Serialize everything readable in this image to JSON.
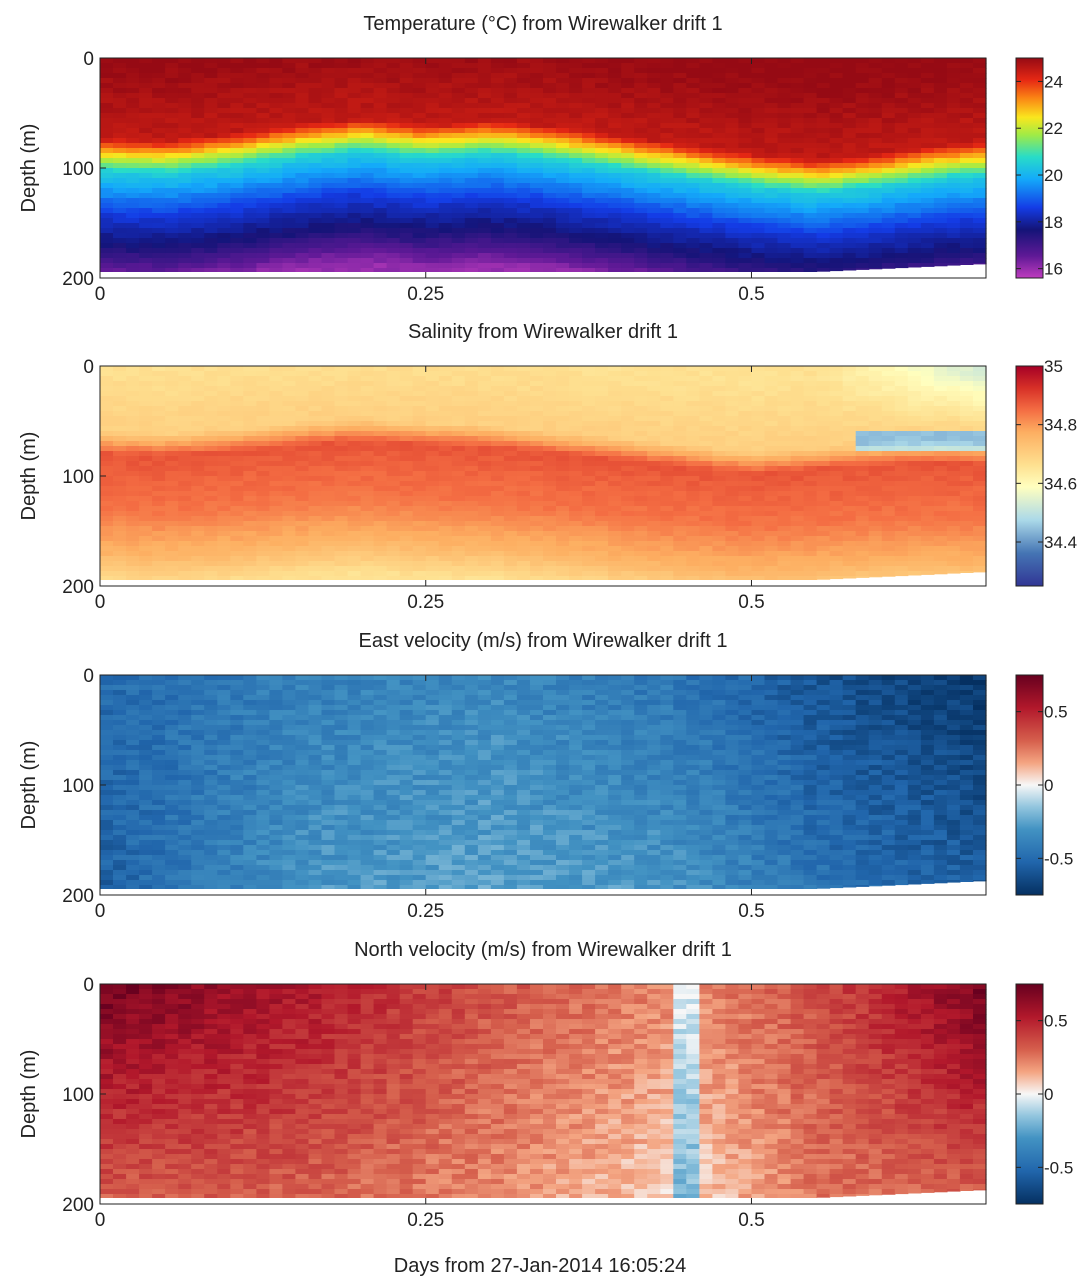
{
  "figure": {
    "xlabel": "Days from 27-Jan-2014 16:05:24"
  },
  "chart_data": [
    {
      "type": "heatmap",
      "variable": "temperature",
      "title": "Temperature (°C) from Wirewalker drift 1",
      "ylabel": "Depth (m)",
      "xlabel": "",
      "xlim": [
        0,
        0.68
      ],
      "ylim": [
        200,
        0
      ],
      "xticks": [
        "0",
        "0.25",
        "0.5"
      ],
      "yticks": [
        "0",
        "100",
        "200"
      ],
      "colormap": "jet",
      "clim": [
        15.6,
        25
      ],
      "colorbar_ticks": [
        "24",
        "22",
        "20",
        "18",
        "16"
      ],
      "colorbar_tick_values": [
        24,
        22,
        20,
        18,
        16
      ],
      "thermocline_depth_m": [
        [
          0,
          78
        ],
        [
          0.05,
          80
        ],
        [
          0.1,
          74
        ],
        [
          0.15,
          66
        ],
        [
          0.2,
          60
        ],
        [
          0.25,
          66
        ],
        [
          0.3,
          62
        ],
        [
          0.35,
          68
        ],
        [
          0.4,
          76
        ],
        [
          0.45,
          84
        ],
        [
          0.5,
          92
        ],
        [
          0.55,
          98
        ],
        [
          0.6,
          92
        ],
        [
          0.65,
          84
        ],
        [
          0.68,
          82
        ]
      ],
      "profile": [
        [
          0,
          25
        ],
        [
          70,
          24.5
        ],
        [
          100,
          20.5
        ],
        [
          140,
          18.5
        ],
        [
          170,
          17.5
        ],
        [
          200,
          16
        ]
      ]
    },
    {
      "type": "heatmap",
      "variable": "salinity",
      "title": "Salinity from Wirewalker drift 1",
      "ylabel": "Depth (m)",
      "xlabel": "",
      "xlim": [
        0,
        0.68
      ],
      "ylim": [
        200,
        0
      ],
      "xticks": [
        "0",
        "0.25",
        "0.5"
      ],
      "yticks": [
        "0",
        "100",
        "200"
      ],
      "colormap": "RdYlBu_r",
      "clim": [
        34.25,
        35
      ],
      "colorbar_ticks": [
        "35",
        "34.8",
        "34.6",
        "34.4"
      ],
      "colorbar_tick_values": [
        35,
        34.8,
        34.6,
        34.4
      ],
      "halocline_depth_m": [
        [
          0,
          70
        ],
        [
          0.05,
          72
        ],
        [
          0.1,
          68
        ],
        [
          0.15,
          62
        ],
        [
          0.2,
          58
        ],
        [
          0.25,
          62
        ],
        [
          0.3,
          64
        ],
        [
          0.35,
          70
        ],
        [
          0.4,
          76
        ],
        [
          0.45,
          82
        ],
        [
          0.5,
          88
        ],
        [
          0.55,
          84
        ],
        [
          0.6,
          80
        ],
        [
          0.65,
          78
        ],
        [
          0.68,
          80
        ]
      ],
      "profile": [
        [
          0,
          34.66
        ],
        [
          60,
          34.7
        ],
        [
          80,
          34.88
        ],
        [
          130,
          34.84
        ],
        [
          170,
          34.76
        ],
        [
          200,
          34.66
        ]
      ]
    },
    {
      "type": "heatmap",
      "variable": "east_velocity",
      "title": "East velocity (m/s) from Wirewalker drift 1",
      "ylabel": "Depth (m)",
      "xlabel": "",
      "xlim": [
        0,
        0.68
      ],
      "ylim": [
        200,
        0
      ],
      "xticks": [
        "0",
        "0.25",
        "0.5"
      ],
      "yticks": [
        "0",
        "100",
        "200"
      ],
      "colormap": "RdBu_r",
      "clim": [
        -0.75,
        0.75
      ],
      "colorbar_ticks": [
        "0.5",
        "0",
        "-0.5"
      ],
      "colorbar_tick_values": [
        0.5,
        0,
        -0.5
      ],
      "surface_value": [
        [
          0,
          -0.5
        ],
        [
          0.15,
          -0.4
        ],
        [
          0.3,
          -0.35
        ],
        [
          0.45,
          -0.45
        ],
        [
          0.55,
          -0.6
        ],
        [
          0.68,
          -0.72
        ]
      ],
      "deep_value": [
        [
          0,
          -0.55
        ],
        [
          0.15,
          -0.3
        ],
        [
          0.3,
          -0.25
        ],
        [
          0.45,
          -0.3
        ],
        [
          0.55,
          -0.45
        ],
        [
          0.68,
          -0.55
        ]
      ]
    },
    {
      "type": "heatmap",
      "variable": "north_velocity",
      "title": "North velocity (m/s) from Wirewalker drift 1",
      "ylabel": "Depth (m)",
      "xlabel": "",
      "xlim": [
        0,
        0.68
      ],
      "ylim": [
        200,
        0
      ],
      "xticks": [
        "0",
        "0.25",
        "0.5"
      ],
      "yticks": [
        "0",
        "100",
        "200"
      ],
      "colormap": "RdBu_r",
      "clim": [
        -0.75,
        0.75
      ],
      "colorbar_ticks": [
        "0.5",
        "0",
        "-0.5"
      ],
      "colorbar_tick_values": [
        0.5,
        0,
        -0.5
      ],
      "surface_value": [
        [
          0,
          0.72
        ],
        [
          0.15,
          0.55
        ],
        [
          0.3,
          0.35
        ],
        [
          0.45,
          0.2
        ],
        [
          0.55,
          0.35
        ],
        [
          0.68,
          0.72
        ]
      ],
      "deep_value": [
        [
          0,
          0.3
        ],
        [
          0.15,
          0.3
        ],
        [
          0.3,
          0.2
        ],
        [
          0.45,
          0.05
        ],
        [
          0.55,
          0.25
        ],
        [
          0.68,
          0.3
        ]
      ]
    }
  ]
}
